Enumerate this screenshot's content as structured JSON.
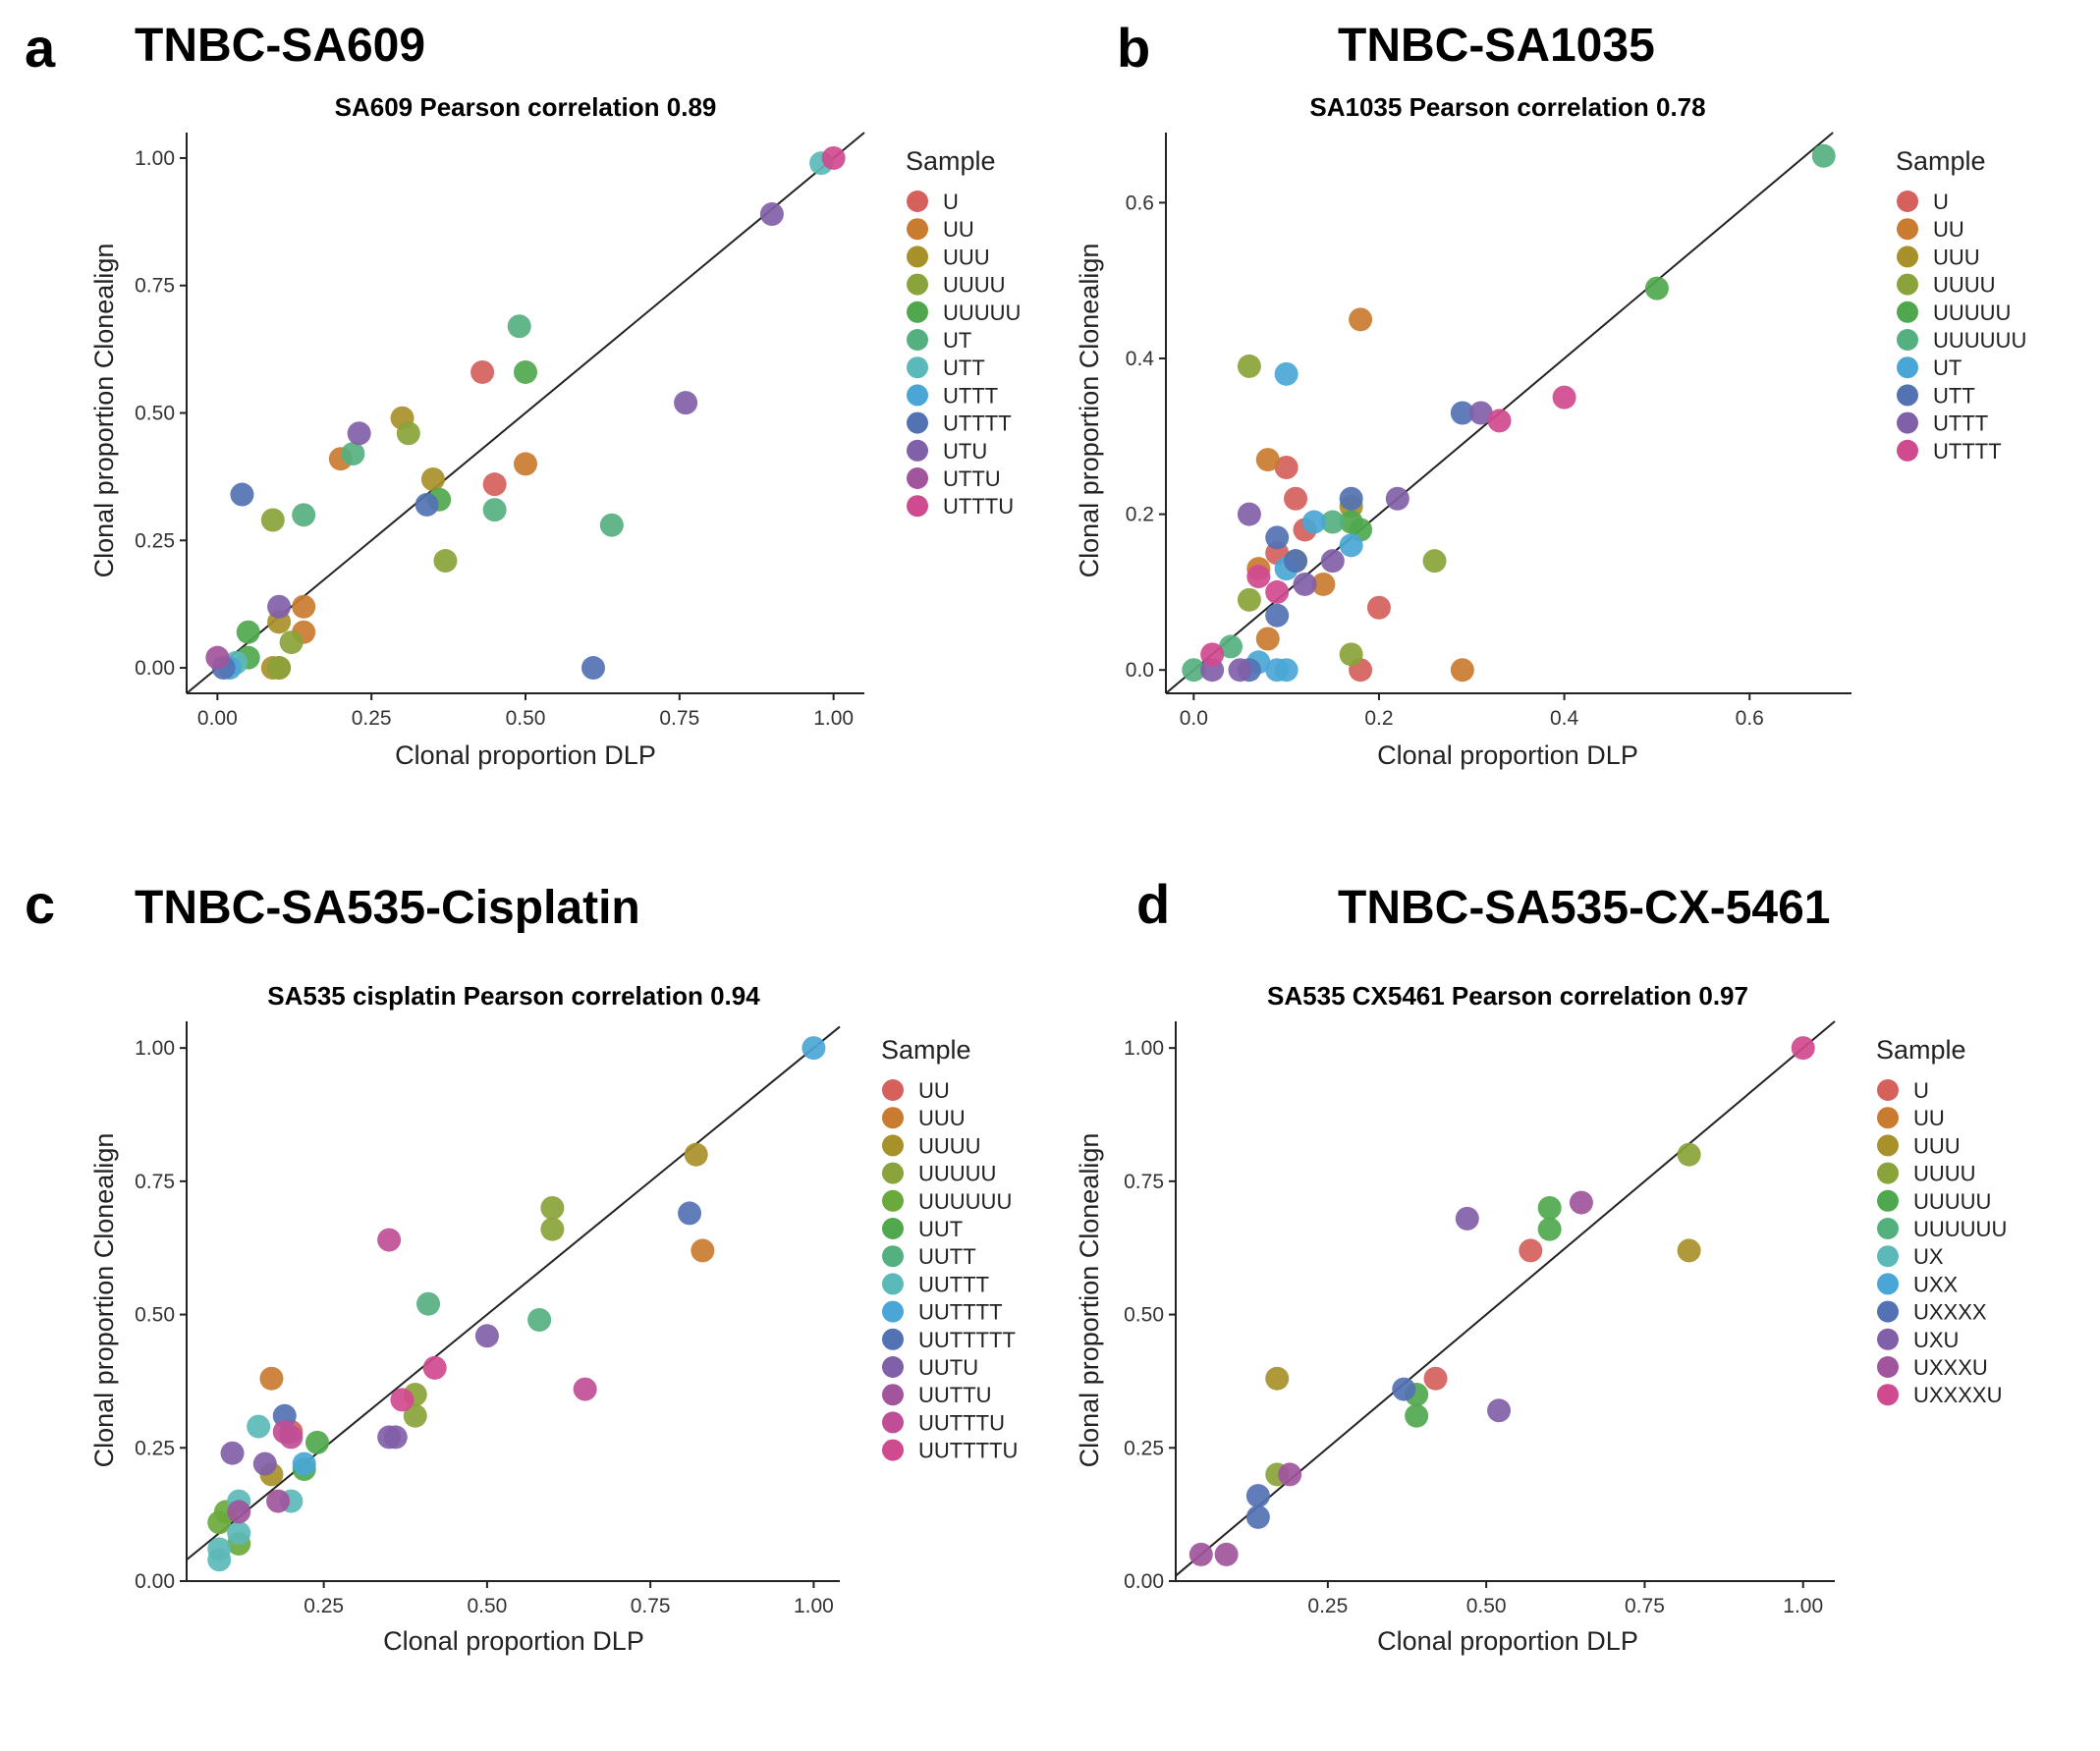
{
  "chart_data": [
    {
      "letter": "a",
      "panel_title": "TNBC-SA609",
      "type": "scatter",
      "title": "SA609 Pearson correlation 0.89",
      "xlabel": "Clonal proportion DLP",
      "ylabel": "Clonal proportion Clonealign",
      "xlim": [
        -0.05,
        1.05
      ],
      "ylim": [
        -0.05,
        1.05
      ],
      "xticks": [
        {
          "v": 0,
          "label": "0.00"
        },
        {
          "v": 0.25,
          "label": "0.25"
        },
        {
          "v": 0.5,
          "label": "0.50"
        },
        {
          "v": 0.75,
          "label": "0.75"
        },
        {
          "v": 1,
          "label": "1.00"
        }
      ],
      "yticks": [
        {
          "v": 0,
          "label": "0.00"
        },
        {
          "v": 0.25,
          "label": "0.25"
        },
        {
          "v": 0.5,
          "label": "0.50"
        },
        {
          "v": 0.75,
          "label": "0.75"
        },
        {
          "v": 1,
          "label": "1.00"
        }
      ],
      "diagonal": true,
      "legend_title": "Sample",
      "legend_position": "right",
      "series": [
        {
          "name": "U",
          "color": "#d5605c",
          "points": [
            [
              0.43,
              0.58
            ],
            [
              0.45,
              0.36
            ]
          ]
        },
        {
          "name": "UU",
          "color": "#c97b2f",
          "points": [
            [
              0.2,
              0.41
            ],
            [
              0.5,
              0.4
            ],
            [
              0.14,
              0.12
            ],
            [
              0.14,
              0.07
            ],
            [
              0.1,
              0.0
            ]
          ]
        },
        {
          "name": "UUU",
          "color": "#a8902a",
          "points": [
            [
              0.3,
              0.49
            ],
            [
              0.35,
              0.37
            ],
            [
              0.1,
              0.09
            ],
            [
              0.09,
              0.0
            ]
          ]
        },
        {
          "name": "UUUU",
          "color": "#8aa33a",
          "points": [
            [
              0.31,
              0.46
            ],
            [
              0.37,
              0.21
            ],
            [
              0.09,
              0.29
            ],
            [
              0.12,
              0.05
            ],
            [
              0.1,
              0.0
            ]
          ]
        },
        {
          "name": "UUUUU",
          "color": "#4fa84e",
          "points": [
            [
              0.5,
              0.58
            ],
            [
              0.36,
              0.33
            ],
            [
              0.05,
              0.07
            ],
            [
              0.05,
              0.02
            ]
          ]
        },
        {
          "name": "UT",
          "color": "#55b07f",
          "points": [
            [
              0.49,
              0.67
            ],
            [
              0.22,
              0.42
            ],
            [
              0.45,
              0.31
            ],
            [
              0.64,
              0.28
            ],
            [
              0.14,
              0.3
            ]
          ]
        },
        {
          "name": "UTT",
          "color": "#5cb9b9",
          "points": [
            [
              0.98,
              0.99
            ],
            [
              0.03,
              0.01
            ]
          ]
        },
        {
          "name": "UTTT",
          "color": "#4aa6d6",
          "points": [
            [
              0.02,
              0.0
            ]
          ]
        },
        {
          "name": "UTTTT",
          "color": "#5272b4",
          "points": [
            [
              0.04,
              0.34
            ],
            [
              0.34,
              0.32
            ],
            [
              0.61,
              0.0
            ],
            [
              0.01,
              0.0
            ]
          ]
        },
        {
          "name": "UTU",
          "color": "#8060a8",
          "points": [
            [
              0.23,
              0.46
            ],
            [
              0.76,
              0.52
            ],
            [
              0.9,
              0.89
            ],
            [
              0.1,
              0.12
            ]
          ]
        },
        {
          "name": "UTTU",
          "color": "#a0559c",
          "points": [
            [
              0.0,
              0.02
            ]
          ]
        },
        {
          "name": "UTTTU",
          "color": "#d04a8f",
          "points": [
            [
              1.0,
              1.0
            ]
          ]
        }
      ]
    },
    {
      "letter": "b",
      "panel_title": "TNBC-SA1035",
      "type": "scatter",
      "title": "SA1035 Pearson correlation 0.78",
      "xlabel": "Clonal proportion DLP",
      "ylabel": "Clonal proportion Clonealign",
      "xlim": [
        -0.03,
        0.71
      ],
      "ylim": [
        -0.03,
        0.69
      ],
      "xticks": [
        {
          "v": 0,
          "label": "0.0"
        },
        {
          "v": 0.2,
          "label": "0.2"
        },
        {
          "v": 0.4,
          "label": "0.4"
        },
        {
          "v": 0.6,
          "label": "0.6"
        }
      ],
      "yticks": [
        {
          "v": 0,
          "label": "0.0"
        },
        {
          "v": 0.2,
          "label": "0.2"
        },
        {
          "v": 0.4,
          "label": "0.4"
        },
        {
          "v": 0.6,
          "label": "0.6"
        }
      ],
      "diagonal": true,
      "legend_title": "Sample",
      "legend_position": "right",
      "series": [
        {
          "name": "U",
          "color": "#d5605c",
          "points": [
            [
              0.1,
              0.26
            ],
            [
              0.11,
              0.22
            ],
            [
              0.12,
              0.18
            ],
            [
              0.09,
              0.15
            ],
            [
              0.2,
              0.08
            ],
            [
              0.18,
              0.0
            ]
          ]
        },
        {
          "name": "UU",
          "color": "#c97b2f",
          "points": [
            [
              0.18,
              0.45
            ],
            [
              0.08,
              0.27
            ],
            [
              0.14,
              0.11
            ],
            [
              0.29,
              0.0
            ],
            [
              0.08,
              0.04
            ],
            [
              0.07,
              0.13
            ]
          ]
        },
        {
          "name": "UUU",
          "color": "#a8902a",
          "points": [
            [
              0.17,
              0.21
            ],
            [
              0.11,
              0.14
            ]
          ]
        },
        {
          "name": "UUUU",
          "color": "#8aa33a",
          "points": [
            [
              0.06,
              0.39
            ],
            [
              0.26,
              0.14
            ],
            [
              0.06,
              0.09
            ],
            [
              0.17,
              0.02
            ]
          ]
        },
        {
          "name": "UUUUU",
          "color": "#4fa84e",
          "points": [
            [
              0.5,
              0.49
            ],
            [
              0.17,
              0.19
            ],
            [
              0.18,
              0.18
            ]
          ]
        },
        {
          "name": "UUUUUU",
          "color": "#55b07f",
          "points": [
            [
              0.68,
              0.66
            ],
            [
              0.15,
              0.19
            ],
            [
              0.04,
              0.03
            ],
            [
              0.0,
              0.0
            ]
          ]
        },
        {
          "name": "UT",
          "color": "#4aa6d6",
          "points": [
            [
              0.1,
              0.38
            ],
            [
              0.13,
              0.19
            ],
            [
              0.17,
              0.16
            ],
            [
              0.1,
              0.13
            ],
            [
              0.09,
              0.0
            ],
            [
              0.1,
              0.0
            ],
            [
              0.07,
              0.01
            ]
          ]
        },
        {
          "name": "UTT",
          "color": "#5272b4",
          "points": [
            [
              0.29,
              0.33
            ],
            [
              0.17,
              0.22
            ],
            [
              0.09,
              0.17
            ],
            [
              0.11,
              0.14
            ],
            [
              0.09,
              0.07
            ],
            [
              0.06,
              0.0
            ]
          ]
        },
        {
          "name": "UTTT",
          "color": "#8060a8",
          "points": [
            [
              0.31,
              0.33
            ],
            [
              0.22,
              0.22
            ],
            [
              0.06,
              0.2
            ],
            [
              0.15,
              0.14
            ],
            [
              0.12,
              0.11
            ],
            [
              0.05,
              0.0
            ],
            [
              0.02,
              0.0
            ]
          ]
        },
        {
          "name": "UTTTT",
          "color": "#d04a8f",
          "points": [
            [
              0.4,
              0.35
            ],
            [
              0.33,
              0.32
            ],
            [
              0.07,
              0.12
            ],
            [
              0.09,
              0.1
            ],
            [
              0.02,
              0.02
            ]
          ]
        }
      ]
    },
    {
      "letter": "c",
      "panel_title": "TNBC-SA535-Cisplatin",
      "type": "scatter",
      "title": "SA535 cisplatin Pearson correlation 0.94",
      "xlabel": "Clonal proportion DLP",
      "ylabel": "Clonal proportion Clonealign",
      "xlim": [
        0.04,
        1.04
      ],
      "ylim": [
        0.0,
        1.05
      ],
      "xticks": [
        {
          "v": 0.25,
          "label": "0.25"
        },
        {
          "v": 0.5,
          "label": "0.50"
        },
        {
          "v": 0.75,
          "label": "0.75"
        },
        {
          "v": 1,
          "label": "1.00"
        }
      ],
      "yticks": [
        {
          "v": 0,
          "label": "0.00"
        },
        {
          "v": 0.25,
          "label": "0.25"
        },
        {
          "v": 0.5,
          "label": "0.50"
        },
        {
          "v": 0.75,
          "label": "0.75"
        },
        {
          "v": 1,
          "label": "1.00"
        }
      ],
      "diagonal": true,
      "legend_title": "Sample",
      "legend_position": "right",
      "series": [
        {
          "name": "UU",
          "color": "#d5605c",
          "points": [
            [
              0.2,
              0.28
            ]
          ]
        },
        {
          "name": "UUU",
          "color": "#c97b2f",
          "points": [
            [
              0.17,
              0.38
            ],
            [
              0.83,
              0.62
            ]
          ]
        },
        {
          "name": "UUUU",
          "color": "#a8902a",
          "points": [
            [
              0.82,
              0.8
            ],
            [
              0.17,
              0.2
            ]
          ]
        },
        {
          "name": "UUUUU",
          "color": "#8aa33a",
          "points": [
            [
              0.6,
              0.7
            ],
            [
              0.6,
              0.66
            ],
            [
              0.39,
              0.35
            ],
            [
              0.39,
              0.31
            ]
          ]
        },
        {
          "name": "UUUUUU",
          "color": "#6aaa3c",
          "points": [
            [
              0.1,
              0.13
            ],
            [
              0.12,
              0.07
            ],
            [
              0.09,
              0.11
            ]
          ]
        },
        {
          "name": "UUT",
          "color": "#4fa84e",
          "points": [
            [
              0.24,
              0.26
            ],
            [
              0.22,
              0.21
            ]
          ]
        },
        {
          "name": "UUTT",
          "color": "#55b07f",
          "points": [
            [
              0.41,
              0.52
            ],
            [
              0.58,
              0.49
            ]
          ]
        },
        {
          "name": "UUTTT",
          "color": "#5cb9b9",
          "points": [
            [
              0.15,
              0.29
            ],
            [
              0.12,
              0.15
            ],
            [
              0.12,
              0.09
            ],
            [
              0.09,
              0.06
            ],
            [
              0.09,
              0.04
            ],
            [
              0.2,
              0.15
            ]
          ]
        },
        {
          "name": "UUTTTT",
          "color": "#4aa6d6",
          "points": [
            [
              1.0,
              1.0
            ],
            [
              0.22,
              0.22
            ]
          ]
        },
        {
          "name": "UUTTTTT",
          "color": "#5272b4",
          "points": [
            [
              0.81,
              0.69
            ],
            [
              0.19,
              0.31
            ]
          ]
        },
        {
          "name": "UUTU",
          "color": "#8060a8",
          "points": [
            [
              0.5,
              0.46
            ],
            [
              0.36,
              0.27
            ],
            [
              0.35,
              0.27
            ],
            [
              0.11,
              0.24
            ],
            [
              0.16,
              0.22
            ]
          ]
        },
        {
          "name": "UUTTU",
          "color": "#a0559c",
          "points": [
            [
              0.12,
              0.13
            ],
            [
              0.18,
              0.15
            ]
          ]
        },
        {
          "name": "UUTTTU",
          "color": "#c04e96",
          "points": [
            [
              0.35,
              0.64
            ],
            [
              0.65,
              0.36
            ],
            [
              0.19,
              0.28
            ],
            [
              0.2,
              0.27
            ]
          ]
        },
        {
          "name": "UUTTTTU",
          "color": "#d04a8f",
          "points": [
            [
              0.42,
              0.4
            ],
            [
              0.37,
              0.34
            ]
          ]
        }
      ]
    },
    {
      "letter": "d",
      "panel_title": "TNBC-SA535-CX-5461",
      "type": "scatter",
      "title": "SA535 CX5461 Pearson correlation 0.97",
      "xlabel": "Clonal proportion DLP",
      "ylabel": "Clonal proportion Clonealign",
      "xlim": [
        0.01,
        1.05
      ],
      "ylim": [
        0.0,
        1.05
      ],
      "xticks": [
        {
          "v": 0.25,
          "label": "0.25"
        },
        {
          "v": 0.5,
          "label": "0.50"
        },
        {
          "v": 0.75,
          "label": "0.75"
        },
        {
          "v": 1,
          "label": "1.00"
        }
      ],
      "yticks": [
        {
          "v": 0,
          "label": "0.00"
        },
        {
          "v": 0.25,
          "label": "0.25"
        },
        {
          "v": 0.5,
          "label": "0.50"
        },
        {
          "v": 0.75,
          "label": "0.75"
        },
        {
          "v": 1,
          "label": "1.00"
        }
      ],
      "diagonal": true,
      "legend_title": "Sample",
      "legend_position": "right",
      "series": [
        {
          "name": "U",
          "color": "#d5605c",
          "points": [
            [
              0.57,
              0.62
            ],
            [
              0.42,
              0.38
            ]
          ]
        },
        {
          "name": "UU",
          "color": "#c97b2f",
          "points": []
        },
        {
          "name": "UUU",
          "color": "#a8902a",
          "points": [
            [
              0.17,
              0.38
            ],
            [
              0.82,
              0.62
            ]
          ]
        },
        {
          "name": "UUUU",
          "color": "#8aa33a",
          "points": [
            [
              0.82,
              0.8
            ],
            [
              0.17,
              0.2
            ]
          ]
        },
        {
          "name": "UUUUU",
          "color": "#4fa84e",
          "points": [
            [
              0.6,
              0.7
            ],
            [
              0.6,
              0.66
            ],
            [
              0.39,
              0.35
            ],
            [
              0.39,
              0.31
            ]
          ]
        },
        {
          "name": "UUUUUU",
          "color": "#55b07f",
          "points": []
        },
        {
          "name": "UX",
          "color": "#5cb9b9",
          "points": []
        },
        {
          "name": "UXX",
          "color": "#4aa6d6",
          "points": []
        },
        {
          "name": "UXXXX",
          "color": "#5272b4",
          "points": [
            [
              0.37,
              0.36
            ],
            [
              0.14,
              0.16
            ],
            [
              0.14,
              0.12
            ]
          ]
        },
        {
          "name": "UXU",
          "color": "#8060a8",
          "points": [
            [
              0.47,
              0.68
            ],
            [
              0.52,
              0.32
            ]
          ]
        },
        {
          "name": "UXXXU",
          "color": "#a0559c",
          "points": [
            [
              0.65,
              0.71
            ],
            [
              0.19,
              0.2
            ],
            [
              0.09,
              0.05
            ],
            [
              0.05,
              0.05
            ]
          ]
        },
        {
          "name": "UXXXXU",
          "color": "#d04a8f",
          "points": [
            [
              1.0,
              1.0
            ]
          ]
        }
      ]
    }
  ]
}
